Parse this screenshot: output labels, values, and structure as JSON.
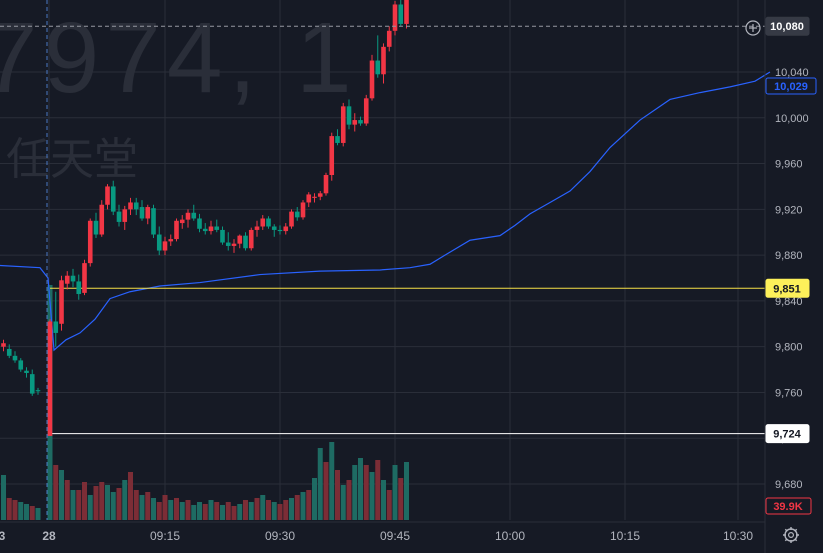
{
  "watermark": {
    "symbol": "7974, 1",
    "name": "任天堂"
  },
  "chart_data": {
    "type": "candlestick",
    "price_axis": {
      "ticks": [
        9680,
        9720,
        9760,
        9800,
        9840,
        9880,
        9920,
        9960,
        10000,
        10040
      ],
      "tick_labels": [
        "9,680",
        "9,720",
        "9,760",
        "9,800",
        "9,840",
        "9,880",
        "9,920",
        "9,960",
        "10,000",
        "10,040"
      ],
      "range": [
        9655,
        10110
      ]
    },
    "time_axis": {
      "labels": [
        {
          "t": 2,
          "text": "3"
        },
        {
          "t": 49,
          "text": "28"
        },
        {
          "t": 165,
          "text": "09:15"
        },
        {
          "t": 280,
          "text": "09:30"
        },
        {
          "t": 395,
          "text": "09:45"
        },
        {
          "t": 510,
          "text": "10:00"
        },
        {
          "t": 625,
          "text": "10:15"
        },
        {
          "t": 738,
          "text": "10:30"
        }
      ]
    },
    "candles": [
      [
        9800,
        9806,
        9796,
        9803
      ],
      [
        9798,
        9802,
        9790,
        9792
      ],
      [
        9792,
        9796,
        9786,
        9788
      ],
      [
        9788,
        9790,
        9778,
        9780
      ],
      [
        9779,
        9782,
        9773,
        9777
      ],
      [
        9776,
        9780,
        9757,
        9759
      ],
      [
        9762,
        9764,
        9758,
        9761
      ],
      [
        9722,
        9824,
        9722,
        9822
      ],
      [
        9822,
        9848,
        9800,
        9812
      ],
      [
        9820,
        9862,
        9814,
        9858
      ],
      [
        9855,
        9866,
        9850,
        9862
      ],
      [
        9862,
        9868,
        9852,
        9857
      ],
      [
        9857,
        9863,
        9841,
        9846
      ],
      [
        9847,
        9876,
        9845,
        9873
      ],
      [
        9873,
        9912,
        9870,
        9910
      ],
      [
        9910,
        9917,
        9895,
        9898
      ],
      [
        9898,
        9928,
        9896,
        9924
      ],
      [
        9924,
        9942,
        9920,
        9940
      ],
      [
        9940,
        9945,
        9915,
        9918
      ],
      [
        9918,
        9924,
        9905,
        9909
      ],
      [
        9909,
        9923,
        9902,
        9920
      ],
      [
        9920,
        9930,
        9915,
        9926
      ],
      [
        9926,
        9930,
        9915,
        9920
      ],
      [
        9922,
        9928,
        9910,
        9912
      ],
      [
        9912,
        9924,
        9907,
        9922
      ],
      [
        9921,
        9924,
        9895,
        9898
      ],
      [
        9898,
        9905,
        9880,
        9884
      ],
      [
        9884,
        9896,
        9880,
        9892
      ],
      [
        9892,
        9898,
        9888,
        9894
      ],
      [
        9894,
        9912,
        9892,
        9910
      ],
      [
        9908,
        9915,
        9903,
        9911
      ],
      [
        9911,
        9920,
        9904,
        9917
      ],
      [
        9917,
        9924,
        9910,
        9912
      ],
      [
        9912,
        9916,
        9900,
        9903
      ],
      [
        9903,
        9908,
        9898,
        9901
      ],
      [
        9901,
        9910,
        9898,
        9905
      ],
      [
        9905,
        9911,
        9900,
        9902
      ],
      [
        9902,
        9905,
        9889,
        9891
      ],
      [
        9891,
        9900,
        9884,
        9888
      ],
      [
        9888,
        9894,
        9882,
        9890
      ],
      [
        9890,
        9898,
        9886,
        9897
      ],
      [
        9897,
        9900,
        9884,
        9886
      ],
      [
        9886,
        9904,
        9884,
        9902
      ],
      [
        9902,
        9910,
        9896,
        9905
      ],
      [
        9905,
        9915,
        9902,
        9912
      ],
      [
        9912,
        9914,
        9903,
        9905
      ],
      [
        9905,
        9907,
        9896,
        9902
      ],
      [
        9902,
        9906,
        9898,
        9901
      ],
      [
        9901,
        9908,
        9898,
        9905
      ],
      [
        9905,
        9920,
        9903,
        9918
      ],
      [
        9918,
        9922,
        9910,
        9913
      ],
      [
        9913,
        9928,
        9911,
        9926
      ],
      [
        9926,
        9935,
        9922,
        9933
      ],
      [
        9930,
        9934,
        9926,
        9931
      ],
      [
        9931,
        9936,
        9928,
        9934
      ],
      [
        9934,
        9952,
        9932,
        9950
      ],
      [
        9950,
        9987,
        9945,
        9984
      ],
      [
        9984,
        9990,
        9976,
        9978
      ],
      [
        9978,
        10013,
        9975,
        10010
      ],
      [
        10010,
        10016,
        9990,
        9994
      ],
      [
        9994,
        10004,
        9988,
        9998
      ],
      [
        9998,
        10001,
        9993,
        9995
      ],
      [
        9995,
        10020,
        9993,
        10017
      ],
      [
        10017,
        10055,
        10015,
        10050
      ],
      [
        10050,
        10072,
        10035,
        10038
      ],
      [
        10038,
        10065,
        10030,
        10062
      ],
      [
        10062,
        10080,
        10058,
        10076
      ],
      [
        10076,
        10102,
        10072,
        10099
      ],
      [
        10099,
        10110,
        10080,
        10082
      ],
      [
        10082,
        10108,
        10078,
        10104
      ]
    ],
    "volume": [
      {
        "h": 45,
        "d": 0
      },
      {
        "h": 22,
        "d": 1
      },
      {
        "h": 20,
        "d": 1
      },
      {
        "h": 18,
        "d": 0
      },
      {
        "h": 16,
        "d": 0
      },
      {
        "h": 14,
        "d": 1
      },
      {
        "h": 12,
        "d": 0
      },
      {
        "h": 235,
        "d": 0
      },
      {
        "h": 55,
        "d": 1
      },
      {
        "h": 50,
        "d": 0
      },
      {
        "h": 40,
        "d": 1
      },
      {
        "h": 30,
        "d": 0
      },
      {
        "h": 30,
        "d": 1
      },
      {
        "h": 38,
        "d": 1
      },
      {
        "h": 25,
        "d": 0
      },
      {
        "h": 34,
        "d": 1
      },
      {
        "h": 38,
        "d": 1
      },
      {
        "h": 35,
        "d": 0
      },
      {
        "h": 28,
        "d": 0
      },
      {
        "h": 32,
        "d": 1
      },
      {
        "h": 40,
        "d": 0
      },
      {
        "h": 48,
        "d": 1
      },
      {
        "h": 30,
        "d": 1
      },
      {
        "h": 25,
        "d": 0
      },
      {
        "h": 28,
        "d": 1
      },
      {
        "h": 22,
        "d": 0
      },
      {
        "h": 18,
        "d": 1
      },
      {
        "h": 25,
        "d": 1
      },
      {
        "h": 20,
        "d": 0
      },
      {
        "h": 22,
        "d": 1
      },
      {
        "h": 18,
        "d": 0
      },
      {
        "h": 20,
        "d": 1
      },
      {
        "h": 15,
        "d": 0
      },
      {
        "h": 18,
        "d": 0
      },
      {
        "h": 16,
        "d": 1
      },
      {
        "h": 20,
        "d": 0
      },
      {
        "h": 18,
        "d": 1
      },
      {
        "h": 15,
        "d": 0
      },
      {
        "h": 18,
        "d": 1
      },
      {
        "h": 14,
        "d": 1
      },
      {
        "h": 16,
        "d": 0
      },
      {
        "h": 20,
        "d": 1
      },
      {
        "h": 18,
        "d": 0
      },
      {
        "h": 22,
        "d": 1
      },
      {
        "h": 25,
        "d": 0
      },
      {
        "h": 20,
        "d": 1
      },
      {
        "h": 18,
        "d": 0
      },
      {
        "h": 16,
        "d": 1
      },
      {
        "h": 20,
        "d": 1
      },
      {
        "h": 22,
        "d": 0
      },
      {
        "h": 25,
        "d": 1
      },
      {
        "h": 28,
        "d": 0
      },
      {
        "h": 30,
        "d": 1
      },
      {
        "h": 42,
        "d": 0
      },
      {
        "h": 72,
        "d": 0
      },
      {
        "h": 58,
        "d": 1
      },
      {
        "h": 78,
        "d": 0
      },
      {
        "h": 50,
        "d": 1
      },
      {
        "h": 35,
        "d": 0
      },
      {
        "h": 40,
        "d": 1
      },
      {
        "h": 55,
        "d": 0
      },
      {
        "h": 62,
        "d": 0
      },
      {
        "h": 55,
        "d": 1
      },
      {
        "h": 48,
        "d": 0
      },
      {
        "h": 60,
        "d": 1
      },
      {
        "h": 40,
        "d": 0
      },
      {
        "h": 30,
        "d": 1
      },
      {
        "h": 55,
        "d": 0
      },
      {
        "h": 42,
        "d": 1
      },
      {
        "h": 58,
        "d": 0
      }
    ],
    "moving_average": {
      "color": "#2962ff",
      "points": [
        [
          -2,
          9871
        ],
        [
          40,
          9869
        ],
        [
          48,
          9860
        ],
        [
          54,
          9797
        ],
        [
          66,
          9806
        ],
        [
          80,
          9812
        ],
        [
          95,
          9824
        ],
        [
          110,
          9842
        ],
        [
          130,
          9848
        ],
        [
          160,
          9853
        ],
        [
          200,
          9856
        ],
        [
          260,
          9863
        ],
        [
          320,
          9866
        ],
        [
          380,
          9867
        ],
        [
          410,
          9869
        ],
        [
          430,
          9872
        ],
        [
          445,
          9880
        ],
        [
          470,
          9893
        ],
        [
          500,
          9897
        ],
        [
          515,
          9906
        ],
        [
          530,
          9916
        ],
        [
          550,
          9926
        ],
        [
          570,
          9936
        ],
        [
          590,
          9953
        ],
        [
          610,
          9974
        ],
        [
          640,
          9998
        ],
        [
          670,
          10016
        ],
        [
          700,
          10022
        ],
        [
          730,
          10027
        ],
        [
          755,
          10032
        ],
        [
          770,
          10040
        ]
      ]
    },
    "horizontal_lines": [
      {
        "value": 9851,
        "label": "9,851",
        "color": "#f5e046",
        "label_bg": "#fdf05a",
        "label_fg": "#131722"
      },
      {
        "value": 9724,
        "label": "9,724",
        "color": "#ffffff",
        "label_bg": "#ffffff",
        "label_fg": "#131722"
      }
    ],
    "crosshair": {
      "value": 10080,
      "label": "10,080",
      "x_t": 49
    },
    "ma_tag": {
      "label": "10,029",
      "color": "#2962ff"
    },
    "volume_tag": {
      "label": "39.9K",
      "color": "#f23645"
    },
    "colors": {
      "up": "#f23645",
      "down": "#089981",
      "vol_up": "#7c2d36",
      "vol_down": "#1e6b63",
      "grid": "#2a2e39",
      "text": "#b2b5be"
    }
  }
}
